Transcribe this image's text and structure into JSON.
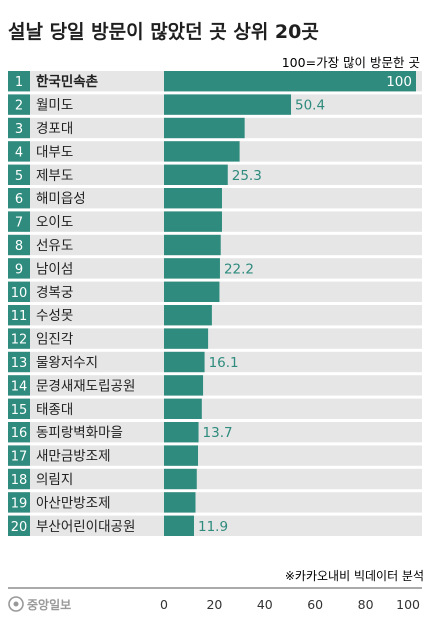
{
  "title": "설날 당일 방문이 많았던 곳 상위 20곳",
  "note": "100=가장 많이 방문한 곳",
  "source": "※카카오내비 빅데이터 분석",
  "logo_text": "중앙일보",
  "colors": {
    "title": "#1f1f1f",
    "bar": "#2e8b7d",
    "rank_box": "#2e8b7d",
    "row_bg": "#e6e6e6",
    "value_label": "#2e8b7d",
    "rule": "#555555"
  },
  "chart_data": {
    "type": "bar",
    "orientation": "horizontal",
    "ranks": [
      "1",
      "2",
      "3",
      "4",
      "5",
      "6",
      "7",
      "8",
      "9",
      "10",
      "11",
      "12",
      "13",
      "14",
      "15",
      "16",
      "17",
      "18",
      "19",
      "20"
    ],
    "categories": [
      "한국민속촌",
      "월미도",
      "경포대",
      "대부도",
      "제부도",
      "해미읍성",
      "오이도",
      "선유도",
      "남이섬",
      "경복궁",
      "수성못",
      "임진각",
      "물왕저수지",
      "문경새재도립공원",
      "태종대",
      "동피랑벽화마을",
      "새만금방조제",
      "의림지",
      "아산만방조제",
      "부산어린이대공원"
    ],
    "values": [
      100,
      50.4,
      32,
      30,
      25.3,
      23,
      23,
      22.5,
      22.2,
      22,
      19,
      17.5,
      16.1,
      15.5,
      15,
      13.7,
      13.5,
      13,
      12.5,
      11.9
    ],
    "value_labels": [
      "100",
      "50.4",
      "",
      "",
      "25.3",
      "",
      "",
      "",
      "22.2",
      "",
      "",
      "",
      "16.1",
      "",
      "",
      "13.7",
      "",
      "",
      "",
      "11.9"
    ],
    "xlim": [
      0,
      100
    ],
    "xticks": [
      "0",
      "20",
      "40",
      "60",
      "80",
      "100"
    ],
    "grid": false
  }
}
